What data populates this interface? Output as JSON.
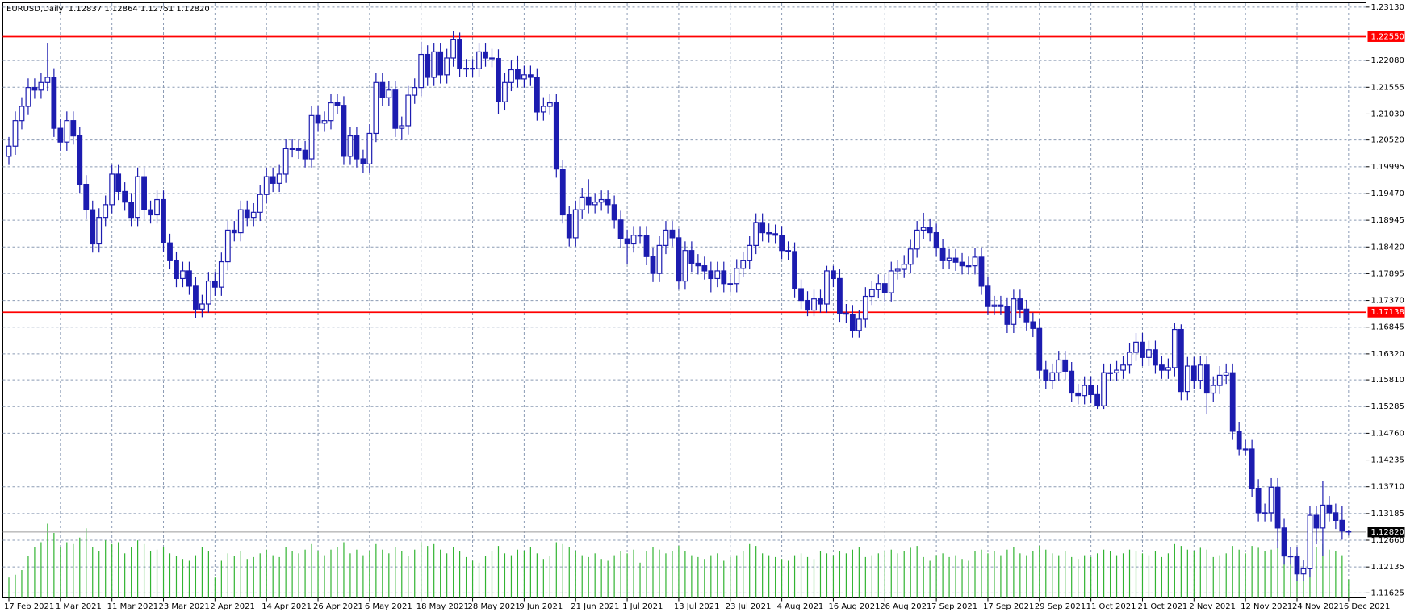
{
  "chart_data": {
    "type": "candlestick",
    "title": "EURUSD,Daily  1.12837 1.12864 1.12751 1.12820",
    "color": "#1c1cb0",
    "volume_color": "#32b432",
    "grid": true,
    "ylim": [
      1.1152,
      1.2327
    ],
    "yticks": [
      {
        "value": 1.2313,
        "label": "1.23130"
      },
      {
        "value": 1.2208,
        "label": "1.22080"
      },
      1.21555,
      {
        "value": 1.2103,
        "label": "1.21030"
      },
      {
        "value": 1.2052,
        "label": "1.20520"
      },
      1.19995,
      {
        "value": 1.1947,
        "label": "1.19470"
      },
      1.18945,
      {
        "value": 1.1842,
        "label": "1.18420"
      },
      1.17895,
      {
        "value": 1.1737,
        "label": "1.17370"
      },
      1.16845,
      {
        "value": 1.1632,
        "label": "1.16320"
      },
      {
        "value": 1.1581,
        "label": "1.15810"
      },
      1.15285,
      {
        "value": 1.1476,
        "label": "1.14760"
      },
      1.14235,
      {
        "value": 1.1371,
        "label": "1.13710"
      },
      1.13185,
      {
        "value": 1.1266,
        "label": "1.12660"
      },
      1.12135,
      1.11625
    ],
    "hlines": [
      {
        "value": 1.2255,
        "label": "1.22550",
        "color": "#ff0000"
      },
      {
        "value": 1.17138,
        "label": "1.17138",
        "color": "#ff0000"
      }
    ],
    "last_price": {
      "value": 1.1282,
      "label": "1.12820",
      "color": "#9a9a9a"
    },
    "categories": [
      "17 Feb 2021",
      null,
      null,
      null,
      null,
      null,
      null,
      null,
      "1 Mar 2021",
      null,
      null,
      null,
      null,
      null,
      null,
      null,
      "11 Mar 2021",
      null,
      null,
      null,
      null,
      null,
      null,
      null,
      "23 Mar 2021",
      null,
      null,
      null,
      null,
      null,
      null,
      null,
      "2 Apr 2021",
      null,
      null,
      null,
      null,
      null,
      null,
      null,
      "14 Apr 2021",
      null,
      null,
      null,
      null,
      null,
      null,
      null,
      "26 Apr 2021",
      null,
      null,
      null,
      null,
      null,
      null,
      null,
      "6 May 2021",
      null,
      null,
      null,
      null,
      null,
      null,
      null,
      "18 May 2021",
      null,
      null,
      null,
      null,
      null,
      null,
      null,
      "28 May 2021",
      null,
      null,
      null,
      null,
      null,
      null,
      null,
      "9 Jun 2021",
      null,
      null,
      null,
      null,
      null,
      null,
      null,
      "21 Jun 2021",
      null,
      null,
      null,
      null,
      null,
      null,
      null,
      "1 Jul 2021",
      null,
      null,
      null,
      null,
      null,
      null,
      null,
      "13 Jul 2021",
      null,
      null,
      null,
      null,
      null,
      null,
      null,
      "23 Jul 2021",
      null,
      null,
      null,
      null,
      null,
      null,
      null,
      "4 Aug 2021",
      null,
      null,
      null,
      null,
      null,
      null,
      null,
      "16 Aug 2021",
      null,
      null,
      null,
      null,
      null,
      null,
      null,
      "26 Aug 2021",
      null,
      null,
      null,
      null,
      null,
      null,
      null,
      "7 Sep 2021",
      null,
      null,
      null,
      null,
      null,
      null,
      null,
      "17 Sep 2021",
      null,
      null,
      null,
      null,
      null,
      null,
      null,
      "29 Sep 2021",
      null,
      null,
      null,
      null,
      null,
      null,
      null,
      "11 Oct 2021",
      null,
      null,
      null,
      null,
      null,
      null,
      null,
      "21 Oct 2021",
      null,
      null,
      null,
      null,
      null,
      null,
      null,
      "2 Nov 2021",
      null,
      null,
      null,
      null,
      null,
      null,
      null,
      "12 Nov 2021",
      null,
      null,
      null,
      null,
      null,
      null,
      null,
      "24 Nov 2021",
      null,
      null,
      null,
      null,
      null,
      null,
      null,
      "6 Dec 2021"
    ],
    "open": [
      1.202,
      1.204,
      1.209,
      1.2118,
      1.2155,
      1.215,
      1.2165,
      1.2175,
      1.2075,
      1.2048,
      1.209,
      1.206,
      1.1965,
      1.1915,
      1.1848,
      1.19,
      1.1925,
      1.1985,
      1.1951,
      1.193,
      1.19,
      1.198,
      1.1915,
      1.1905,
      1.1935,
      1.185,
      1.1815,
      1.178,
      1.1795,
      1.1765,
      1.172,
      1.173,
      1.1775,
      1.1763,
      1.1813,
      1.1875,
      1.187,
      1.1915,
      1.19,
      1.191,
      1.1945,
      1.198,
      1.1967,
      1.1985,
      1.2035,
      1.2035,
      1.2032,
      1.2015,
      1.21,
      1.2085,
      1.209,
      1.2125,
      1.212,
      1.202,
      1.206,
      1.2015,
      1.2005,
      1.2065,
      1.2165,
      1.2135,
      1.215,
      1.2075,
      1.208,
      1.214,
      1.2155,
      1.222,
      1.2175,
      1.2225,
      1.218,
      1.2213,
      1.225,
      1.2193,
      1.2193,
      1.2192,
      1.2225,
      1.2213,
      1.2212,
      1.2127,
      1.2165,
      1.219,
      1.2172,
      1.218,
      1.2175,
      1.2107,
      1.2118,
      1.2125,
      1.1995,
      1.1905,
      1.186,
      1.1915,
      1.194,
      1.1925,
      1.193,
      1.1935,
      1.1925,
      1.1895,
      1.1858,
      1.1848,
      1.1865,
      1.1865,
      1.1823,
      1.179,
      1.1845,
      1.1875,
      1.186,
      1.1775,
      1.1835,
      1.181,
      1.1805,
      1.1795,
      1.178,
      1.1795,
      1.177,
      1.177,
      1.18,
      1.1815,
      1.1845,
      1.189,
      1.187,
      1.1868,
      1.1865,
      1.1835,
      1.1833,
      1.176,
      1.1737,
      1.1718,
      1.174,
      1.173,
      1.1795,
      1.178,
      1.1712,
      1.171,
      1.1678,
      1.17,
      1.1745,
      1.1758,
      1.177,
      1.1752,
      1.1795,
      1.1798,
      1.1808,
      1.1838,
      1.1875,
      1.188,
      1.187,
      1.184,
      1.1815,
      1.182,
      1.1812,
      1.1805,
      1.1805,
      1.1822,
      1.1765,
      1.1725,
      1.1728,
      1.1725,
      1.169,
      1.174,
      1.172,
      1.1695,
      1.1682,
      1.16,
      1.158,
      1.1595,
      1.162,
      1.1598,
      1.1555,
      1.155,
      1.157,
      1.1552,
      1.153,
      1.1595,
      1.1595,
      1.16,
      1.161,
      1.1635,
      1.1655,
      1.1625,
      1.164,
      1.161,
      1.16,
      1.1605,
      1.168,
      1.1558,
      1.1608,
      1.158,
      1.161,
      1.1555,
      1.157,
      1.159,
      1.1595,
      1.148,
      1.1445,
      1.1445,
      1.1368,
      1.132,
      1.132,
      1.137,
      1.129,
      1.1235,
      1.1235,
      1.12,
      1.121,
      1.1315,
      1.129,
      1.1335,
      1.132,
      1.1305,
      1.12837
    ],
    "high": [
      1.2058,
      1.2108,
      1.2136,
      1.2173,
      1.2173,
      1.2183,
      1.2243,
      1.2193,
      1.2093,
      1.2108,
      1.2108,
      1.2078,
      1.1983,
      1.1933,
      1.1918,
      1.1943,
      1.2003,
      1.2003,
      1.1969,
      1.1948,
      1.1998,
      1.1998,
      1.1933,
      1.1953,
      1.1953,
      1.1868,
      1.1833,
      1.1813,
      1.1813,
      1.1783,
      1.1748,
      1.1793,
      1.1793,
      1.1831,
      1.1893,
      1.1893,
      1.1933,
      1.1933,
      1.1928,
      1.1963,
      1.1998,
      1.1998,
      1.2003,
      1.2053,
      1.2053,
      1.2053,
      1.205,
      1.2118,
      1.2118,
      1.2108,
      1.2143,
      1.2143,
      1.2138,
      1.2078,
      1.2078,
      1.2033,
      1.2083,
      1.2183,
      1.2183,
      1.2168,
      1.2168,
      1.2098,
      1.2158,
      1.2173,
      1.2245,
      1.2238,
      1.2243,
      1.2243,
      1.2231,
      1.2266,
      1.2263,
      1.2211,
      1.2211,
      1.2243,
      1.2243,
      1.2231,
      1.223,
      1.2183,
      1.2208,
      1.2218,
      1.2198,
      1.2198,
      1.2193,
      1.2136,
      1.2143,
      1.2143,
      1.2013,
      1.1923,
      1.1933,
      1.1958,
      1.1975,
      1.1948,
      1.1953,
      1.1953,
      1.1943,
      1.1913,
      1.1876,
      1.1883,
      1.1883,
      1.1883,
      1.1841,
      1.1863,
      1.1893,
      1.1893,
      1.1878,
      1.1853,
      1.1853,
      1.1828,
      1.1823,
      1.1813,
      1.1813,
      1.1813,
      1.1788,
      1.1818,
      1.1833,
      1.1863,
      1.1908,
      1.1908,
      1.1888,
      1.1886,
      1.1883,
      1.1853,
      1.1851,
      1.1778,
      1.1755,
      1.1758,
      1.1758,
      1.1805,
      1.1805,
      1.1798,
      1.173,
      1.1728,
      1.1718,
      1.1763,
      1.1776,
      1.1788,
      1.1788,
      1.1813,
      1.1816,
      1.1826,
      1.1856,
      1.1893,
      1.1909,
      1.1898,
      1.1888,
      1.1858,
      1.1838,
      1.1838,
      1.183,
      1.1823,
      1.184,
      1.184,
      1.1783,
      1.1746,
      1.1746,
      1.1743,
      1.1758,
      1.1758,
      1.1738,
      1.1713,
      1.17,
      1.1618,
      1.1613,
      1.1638,
      1.1638,
      1.1616,
      1.1573,
      1.1588,
      1.1588,
      1.157,
      1.1613,
      1.1613,
      1.1618,
      1.1628,
      1.1653,
      1.1673,
      1.1673,
      1.1658,
      1.1658,
      1.1628,
      1.1623,
      1.1692,
      1.169,
      1.1626,
      1.1626,
      1.1628,
      1.1628,
      1.1588,
      1.1608,
      1.1613,
      1.1613,
      1.1498,
      1.1463,
      1.1463,
      1.1386,
      1.1338,
      1.1388,
      1.1388,
      1.1308,
      1.1253,
      1.1253,
      1.1228,
      1.1333,
      1.1333,
      1.1383,
      1.1353,
      1.1338,
      1.1333,
      1.12864
    ],
    "low": [
      1.2003,
      1.2023,
      1.2073,
      1.2101,
      1.2133,
      1.2133,
      1.2148,
      1.2058,
      1.2031,
      1.2031,
      1.2043,
      1.1948,
      1.1898,
      1.1831,
      1.1831,
      1.1883,
      1.1908,
      1.1934,
      1.1913,
      1.1883,
      1.1883,
      1.1898,
      1.1888,
      1.1888,
      1.1833,
      1.1798,
      1.1763,
      1.1763,
      1.1748,
      1.1703,
      1.1704,
      1.1713,
      1.1746,
      1.1746,
      1.1796,
      1.1853,
      1.1853,
      1.1883,
      1.1883,
      1.1893,
      1.1928,
      1.195,
      1.195,
      1.1968,
      1.2018,
      1.2015,
      1.1998,
      1.1998,
      1.2068,
      1.2068,
      1.2073,
      1.2103,
      1.2003,
      1.2003,
      1.1998,
      1.1988,
      1.1988,
      1.2048,
      1.2118,
      1.2118,
      1.2058,
      1.2052,
      1.2063,
      1.2123,
      1.2138,
      1.2158,
      1.2158,
      1.2163,
      1.2163,
      1.2196,
      1.2176,
      1.2176,
      1.2175,
      1.2175,
      1.2196,
      1.2195,
      1.2103,
      1.211,
      1.2148,
      1.2155,
      1.2155,
      1.2158,
      1.209,
      1.209,
      1.2101,
      1.1978,
      1.1888,
      1.1843,
      1.1843,
      1.1898,
      1.1908,
      1.1908,
      1.1913,
      1.1908,
      1.1878,
      1.1841,
      1.1808,
      1.1831,
      1.1848,
      1.1806,
      1.1773,
      1.1773,
      1.1828,
      1.1843,
      1.1758,
      1.1758,
      1.1793,
      1.1788,
      1.1778,
      1.1753,
      1.1763,
      1.1753,
      1.1753,
      1.1753,
      1.1783,
      1.1798,
      1.1828,
      1.1853,
      1.1851,
      1.1848,
      1.1818,
      1.1816,
      1.1743,
      1.172,
      1.1706,
      1.1706,
      1.1713,
      1.1713,
      1.1763,
      1.1695,
      1.1693,
      1.1664,
      1.1664,
      1.1683,
      1.1728,
      1.1741,
      1.1735,
      1.1735,
      1.1778,
      1.1781,
      1.1791,
      1.1821,
      1.1858,
      1.1853,
      1.1823,
      1.1798,
      1.1798,
      1.1795,
      1.1788,
      1.1788,
      1.1788,
      1.1748,
      1.1708,
      1.1708,
      1.1708,
      1.1673,
      1.1673,
      1.1703,
      1.1678,
      1.1665,
      1.1583,
      1.1563,
      1.1563,
      1.1578,
      1.1581,
      1.1538,
      1.1533,
      1.1533,
      1.1535,
      1.1524,
      1.1524,
      1.1578,
      1.1578,
      1.1583,
      1.1593,
      1.1618,
      1.1608,
      1.1608,
      1.1593,
      1.1583,
      1.1583,
      1.1588,
      1.1541,
      1.1541,
      1.1563,
      1.1563,
      1.1513,
      1.1538,
      1.1553,
      1.1573,
      1.1463,
      1.1433,
      1.1433,
      1.1351,
      1.1303,
      1.1303,
      1.1303,
      1.125,
      1.1218,
      1.1218,
      1.1186,
      1.1186,
      1.1193,
      1.1258,
      1.1235,
      1.1303,
      1.1288,
      1.1267,
      1.12751
    ],
    "close": [
      1.204,
      1.209,
      1.2118,
      1.2155,
      1.215,
      1.2165,
      1.2175,
      1.2075,
      1.2048,
      1.209,
      1.206,
      1.1965,
      1.1915,
      1.1848,
      1.19,
      1.1925,
      1.1985,
      1.1951,
      1.193,
      1.19,
      1.198,
      1.1915,
      1.1905,
      1.1935,
      1.185,
      1.1815,
      1.178,
      1.1795,
      1.1765,
      1.172,
      1.173,
      1.1775,
      1.1763,
      1.1813,
      1.1875,
      1.187,
      1.1915,
      1.19,
      1.191,
      1.1945,
      1.198,
      1.1967,
      1.1985,
      1.2035,
      1.2035,
      1.2032,
      1.2015,
      1.21,
      1.2085,
      1.209,
      1.2125,
      1.212,
      1.202,
      1.206,
      1.2015,
      1.2005,
      1.2065,
      1.2165,
      1.2135,
      1.215,
      1.2075,
      1.208,
      1.214,
      1.2155,
      1.222,
      1.2175,
      1.2225,
      1.218,
      1.2213,
      1.225,
      1.2193,
      1.2193,
      1.2192,
      1.2225,
      1.2213,
      1.2212,
      1.2127,
      1.2165,
      1.219,
      1.2172,
      1.218,
      1.2175,
      1.2107,
      1.2118,
      1.2125,
      1.1995,
      1.1905,
      1.186,
      1.1915,
      1.194,
      1.1925,
      1.193,
      1.1935,
      1.1925,
      1.1895,
      1.1858,
      1.1848,
      1.1865,
      1.1865,
      1.1823,
      1.179,
      1.1845,
      1.1875,
      1.186,
      1.1775,
      1.1835,
      1.181,
      1.1805,
      1.1795,
      1.178,
      1.1795,
      1.177,
      1.177,
      1.18,
      1.1815,
      1.1845,
      1.189,
      1.187,
      1.1868,
      1.1865,
      1.1835,
      1.1833,
      1.176,
      1.1737,
      1.1718,
      1.174,
      1.173,
      1.1795,
      1.178,
      1.1712,
      1.171,
      1.1678,
      1.17,
      1.1745,
      1.1758,
      1.177,
      1.1752,
      1.1795,
      1.1798,
      1.1808,
      1.1838,
      1.1875,
      1.188,
      1.187,
      1.184,
      1.1815,
      1.182,
      1.1812,
      1.1805,
      1.1805,
      1.1822,
      1.1765,
      1.1725,
      1.1728,
      1.1725,
      1.169,
      1.174,
      1.172,
      1.1695,
      1.1682,
      1.16,
      1.158,
      1.1595,
      1.162,
      1.1598,
      1.1555,
      1.155,
      1.157,
      1.1552,
      1.153,
      1.1595,
      1.1595,
      1.16,
      1.161,
      1.1635,
      1.1655,
      1.1625,
      1.164,
      1.161,
      1.16,
      1.1605,
      1.168,
      1.1558,
      1.1608,
      1.158,
      1.161,
      1.1555,
      1.157,
      1.159,
      1.1595,
      1.148,
      1.1445,
      1.1445,
      1.1368,
      1.132,
      1.132,
      1.137,
      1.129,
      1.1235,
      1.1235,
      1.12,
      1.121,
      1.1315,
      1.129,
      1.1335,
      1.132,
      1.1305,
      1.1284,
      1.1282
    ],
    "volume": [
      22,
      25,
      30,
      45,
      55,
      60,
      80,
      70,
      55,
      60,
      58,
      65,
      75,
      55,
      50,
      62,
      58,
      60,
      48,
      55,
      62,
      58,
      50,
      52,
      55,
      48,
      45,
      42,
      40,
      46,
      55,
      50,
      22,
      40,
      48,
      45,
      50,
      42,
      44,
      48,
      52,
      46,
      44,
      55,
      50,
      48,
      52,
      58,
      50,
      46,
      52,
      55,
      60,
      48,
      52,
      46,
      50,
      58,
      52,
      48,
      55,
      50,
      45,
      52,
      60,
      56,
      58,
      52,
      48,
      55,
      50,
      44,
      40,
      38,
      45,
      50,
      56,
      48,
      46,
      52,
      50,
      55,
      48,
      42,
      45,
      60,
      58,
      55,
      50,
      46,
      44,
      48,
      42,
      40,
      46,
      50,
      48,
      52,
      38,
      50,
      55,
      52,
      48,
      50,
      56,
      50,
      46,
      44,
      42,
      46,
      48,
      40,
      44,
      46,
      50,
      58,
      56,
      48,
      46,
      44,
      42,
      40,
      46,
      48,
      44,
      42,
      50,
      48,
      46,
      50,
      48,
      52,
      55,
      44,
      46,
      48,
      50,
      52,
      48,
      50,
      54,
      56,
      44,
      40,
      46,
      48,
      44,
      46,
      42,
      40,
      50,
      52,
      48,
      50,
      46,
      52,
      55,
      48,
      46,
      50,
      56,
      52,
      48,
      46,
      50,
      44,
      42,
      46,
      44,
      48,
      52,
      50,
      46,
      48,
      52,
      50,
      48,
      46,
      50,
      44,
      48,
      58,
      56,
      52,
      50,
      54,
      52,
      44,
      46,
      48,
      56,
      52,
      48,
      56,
      54,
      50,
      52,
      55,
      46,
      44,
      48,
      40,
      42,
      55,
      58,
      52,
      50,
      46,
      20
    ]
  }
}
